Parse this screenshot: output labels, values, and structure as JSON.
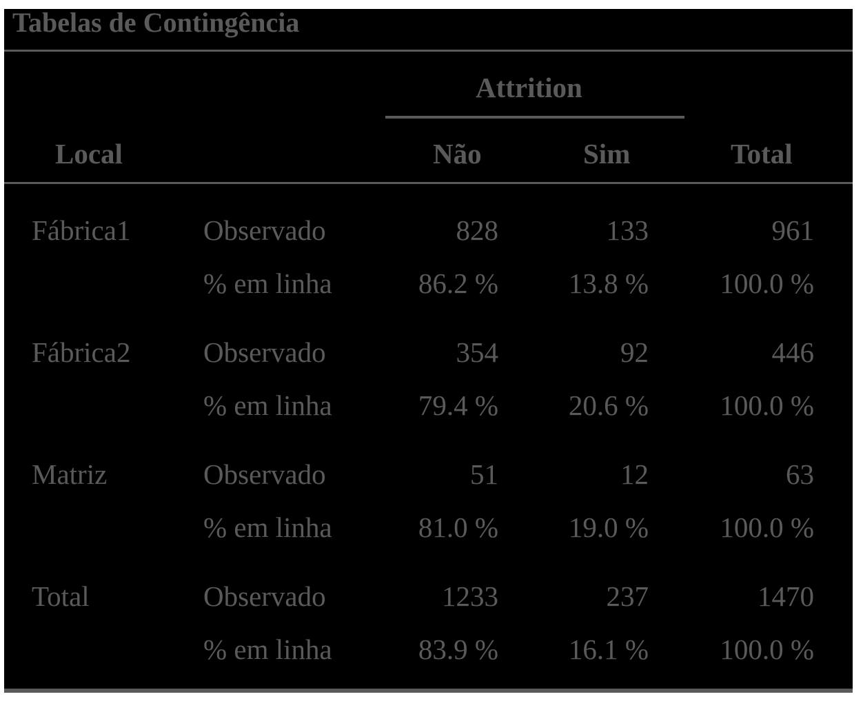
{
  "title": "Tabelas de Contingência",
  "header": {
    "group_label": "Attrition",
    "row_label": "Local",
    "col_nao": "Não",
    "col_sim": "Sim",
    "col_total": "Total"
  },
  "rows": [
    {
      "local": "Fábrica1",
      "observed": {
        "label": "Observado",
        "nao": "828",
        "sim": "133",
        "total": "961"
      },
      "percent": {
        "label": "% em linha",
        "nao": "86.2 %",
        "sim": "13.8 %",
        "total": "100.0 %"
      }
    },
    {
      "local": "Fábrica2",
      "observed": {
        "label": "Observado",
        "nao": "354",
        "sim": "92",
        "total": "446"
      },
      "percent": {
        "label": "% em linha",
        "nao": "79.4 %",
        "sim": "20.6 %",
        "total": "100.0 %"
      }
    },
    {
      "local": "Matriz",
      "observed": {
        "label": "Observado",
        "nao": "51",
        "sim": "12",
        "total": "63"
      },
      "percent": {
        "label": "% em linha",
        "nao": "81.0 %",
        "sim": "19.0 %",
        "total": "100.0 %"
      }
    },
    {
      "local": "Total",
      "observed": {
        "label": "Observado",
        "nao": "1233",
        "sim": "237",
        "total": "1470"
      },
      "percent": {
        "label": "% em linha",
        "nao": "83.9 %",
        "sim": "16.1 %",
        "total": "100.0 %"
      }
    }
  ]
}
